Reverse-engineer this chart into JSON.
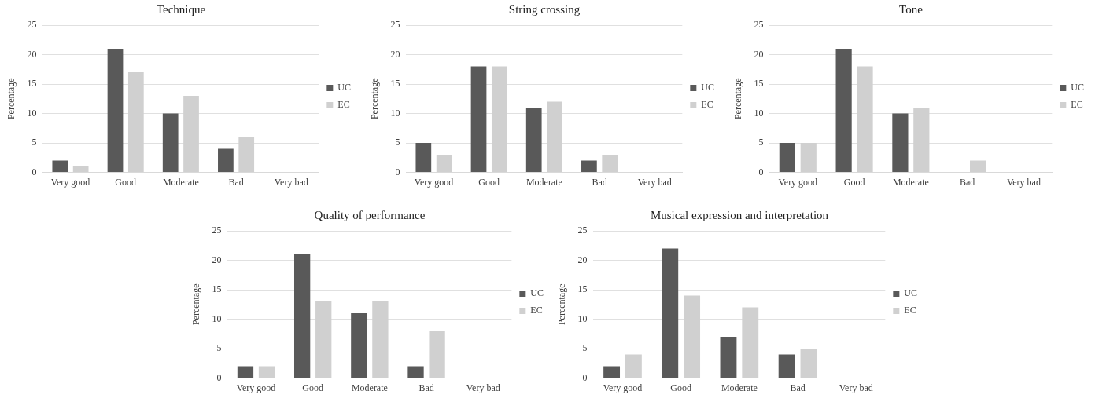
{
  "chart_data": [
    {
      "type": "bar",
      "title": "Technique",
      "ylabel": "Percentage",
      "categories": [
        "Very good",
        "Good",
        "Moderate",
        "Bad",
        "Very bad"
      ],
      "ylim": [
        0,
        25
      ],
      "yticks": [
        0,
        5,
        10,
        15,
        20,
        25
      ],
      "grid": "y",
      "legend": "right",
      "series": [
        {
          "name": "UC",
          "color": "#595959",
          "values": [
            2,
            21,
            10,
            4,
            0
          ]
        },
        {
          "name": "EC",
          "color": "#d0d0d0",
          "values": [
            1,
            17,
            13,
            6,
            0
          ]
        }
      ]
    },
    {
      "type": "bar",
      "title": "String crossing",
      "ylabel": "Percentage",
      "categories": [
        "Very good",
        "Good",
        "Moderate",
        "Bad",
        "Very bad"
      ],
      "ylim": [
        0,
        25
      ],
      "yticks": [
        0,
        5,
        10,
        15,
        20,
        25
      ],
      "grid": "y",
      "legend": "right",
      "series": [
        {
          "name": "UC",
          "color": "#595959",
          "values": [
            5,
            18,
            11,
            2,
            0
          ]
        },
        {
          "name": "EC",
          "color": "#d0d0d0",
          "values": [
            3,
            18,
            12,
            3,
            0
          ]
        }
      ]
    },
    {
      "type": "bar",
      "title": "Tone",
      "ylabel": "Percentage",
      "categories": [
        "Very good",
        "Good",
        "Moderate",
        "Bad",
        "Very bad"
      ],
      "ylim": [
        0,
        25
      ],
      "yticks": [
        0,
        5,
        10,
        15,
        20,
        25
      ],
      "grid": "y",
      "legend": "right",
      "series": [
        {
          "name": "UC",
          "color": "#595959",
          "values": [
            5,
            21,
            10,
            0,
            0
          ]
        },
        {
          "name": "EC",
          "color": "#d0d0d0",
          "values": [
            5,
            18,
            11,
            2,
            0
          ]
        }
      ]
    },
    {
      "type": "bar",
      "title": "Quality of performance",
      "ylabel": "Percentage",
      "categories": [
        "Very good",
        "Good",
        "Moderate",
        "Bad",
        "Very bad"
      ],
      "ylim": [
        0,
        25
      ],
      "yticks": [
        0,
        5,
        10,
        15,
        20,
        25
      ],
      "grid": "y",
      "legend": "right",
      "series": [
        {
          "name": "UC",
          "color": "#595959",
          "values": [
            2,
            21,
            11,
            2,
            0
          ]
        },
        {
          "name": "EC",
          "color": "#d0d0d0",
          "values": [
            2,
            13,
            13,
            8,
            0
          ]
        }
      ]
    },
    {
      "type": "bar",
      "title": "Musical expression and interpretation",
      "ylabel": "Percentage",
      "categories": [
        "Very good",
        "Good",
        "Moderate",
        "Bad",
        "Very bad"
      ],
      "ylim": [
        0,
        25
      ],
      "yticks": [
        0,
        5,
        10,
        15,
        20,
        25
      ],
      "grid": "y",
      "legend": "right",
      "series": [
        {
          "name": "UC",
          "color": "#595959",
          "values": [
            2,
            22,
            7,
            4,
            0
          ]
        },
        {
          "name": "EC",
          "color": "#d0d0d0",
          "values": [
            4,
            14,
            12,
            5,
            0
          ]
        }
      ]
    }
  ]
}
